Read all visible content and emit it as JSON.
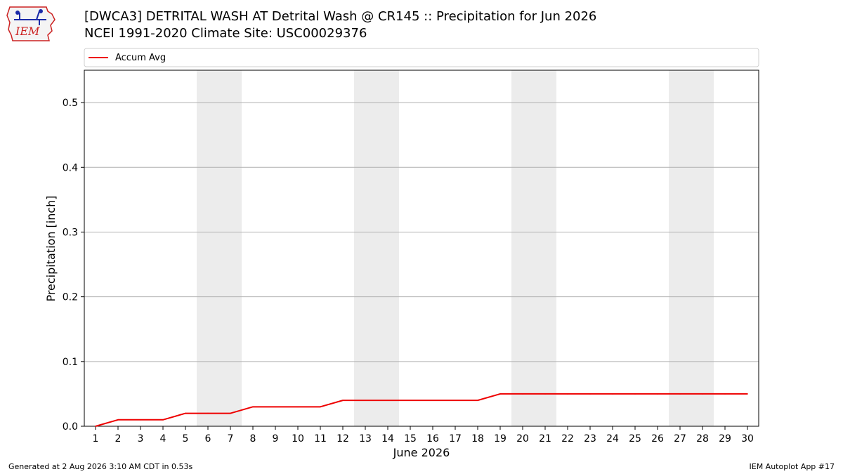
{
  "header": {
    "title_line1": "[DWCA3] DETRITAL WASH  AT Detrital Wash @ CR145 :: Precipitation for Jun 2026",
    "title_line2": "NCEI 1991-2020 Climate Site: USC00029376"
  },
  "logo": {
    "text": "IEM",
    "icon": "iem-logo-icon"
  },
  "footer": {
    "generated": "Generated at 2 Aug 2026 3:10 AM CDT in 0.53s",
    "app": "IEM Autoplot App #17"
  },
  "colors": {
    "accum_avg": "#ee0000",
    "weekend_band": "#ececec",
    "grid": "#b0b0b0"
  },
  "chart_data": {
    "type": "line",
    "xlabel": "June 2026",
    "ylabel": "Precipitation [inch]",
    "x": [
      1,
      2,
      3,
      4,
      5,
      6,
      7,
      8,
      9,
      10,
      11,
      12,
      13,
      14,
      15,
      16,
      17,
      18,
      19,
      20,
      21,
      22,
      23,
      24,
      25,
      26,
      27,
      28,
      29,
      30
    ],
    "xlim": [
      0.5,
      30.5
    ],
    "ylim": [
      0,
      0.55
    ],
    "yticks": [
      0.0,
      0.1,
      0.2,
      0.3,
      0.4,
      0.5
    ],
    "ytick_labels": [
      "0.0",
      "0.1",
      "0.2",
      "0.3",
      "0.4",
      "0.5"
    ],
    "grid": "horizontal",
    "legend_position": "top",
    "weekend_days": [
      6,
      7,
      13,
      14,
      20,
      21,
      27,
      28
    ],
    "series": [
      {
        "name": "Accum Avg",
        "values": [
          0.0,
          0.01,
          0.01,
          0.01,
          0.02,
          0.02,
          0.02,
          0.03,
          0.03,
          0.03,
          0.03,
          0.04,
          0.04,
          0.04,
          0.04,
          0.04,
          0.04,
          0.04,
          0.05,
          0.05,
          0.05,
          0.05,
          0.05,
          0.05,
          0.05,
          0.05,
          0.05,
          0.05,
          0.05,
          0.05
        ]
      }
    ]
  }
}
